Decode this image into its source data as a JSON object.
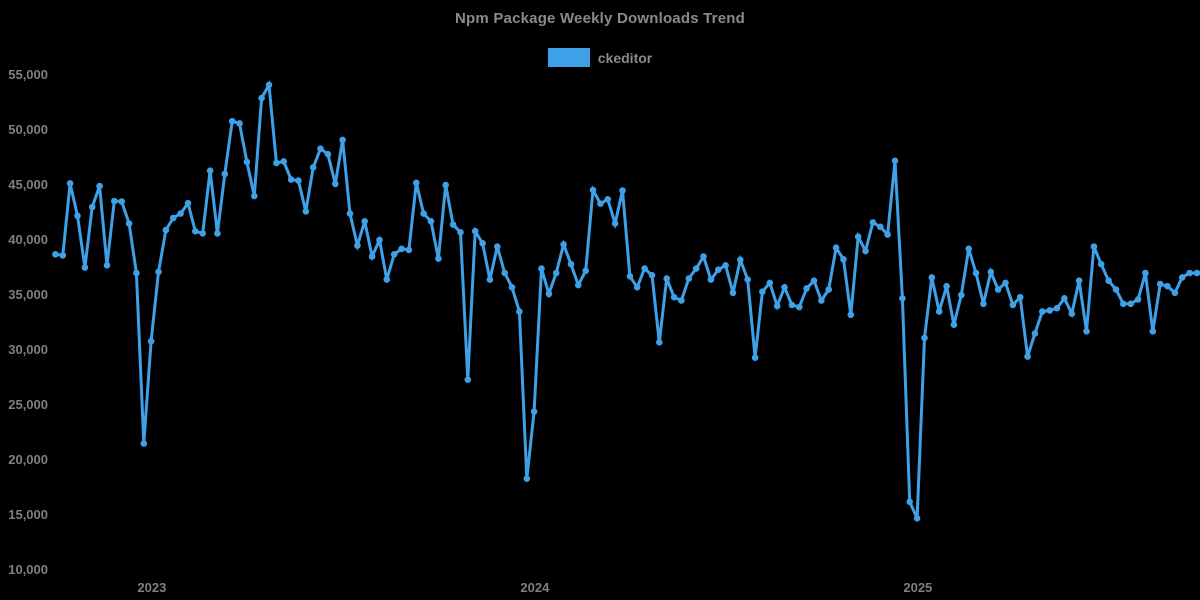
{
  "title": "Npm Package Weekly Downloads Trend",
  "legend": {
    "label": "ckeditor",
    "swatch_color": "#3ea0e6"
  },
  "colors": {
    "background": "#000000",
    "line": "#3ea0e6",
    "text": "#8a8a8a"
  },
  "chart_data": {
    "type": "line",
    "title": "Npm Package Weekly Downloads Trend",
    "xlabel": "",
    "ylabel": "",
    "grid": false,
    "legend_position": "top-center",
    "marker": "circle",
    "ylim": [
      10000,
      55000
    ],
    "y_axis": {
      "tick_values": [
        55000,
        50000,
        45000,
        40000,
        35000,
        30000,
        25000,
        20000,
        15000,
        10000
      ],
      "tick_labels": [
        "55,000",
        "50,000",
        "45,000",
        "40,000",
        "35,000",
        "30,000",
        "25,000",
        "20,000",
        "15,000",
        "10,000"
      ]
    },
    "x_axis": {
      "unit": "week",
      "tick_labels": [
        "2023",
        "2024",
        "2025"
      ],
      "tick_week_indices": [
        13.1,
        65.1,
        117.1
      ]
    },
    "series": [
      {
        "name": "ckeditor",
        "color": "#3ea0e6",
        "values": [
          38700,
          38600,
          45150,
          42200,
          37500,
          43000,
          44900,
          37700,
          43550,
          43500,
          41500,
          37000,
          21500,
          30800,
          37100,
          40900,
          42000,
          42400,
          43350,
          40800,
          40600,
          46300,
          40600,
          46000,
          50800,
          50600,
          47100,
          44000,
          52900,
          54100,
          47000,
          47150,
          45500,
          45400,
          42600,
          46600,
          48300,
          47800,
          45100,
          49100,
          42400,
          39500,
          41700,
          38500,
          40000,
          36400,
          38700,
          39200,
          39100,
          45200,
          42400,
          41700,
          38300,
          45000,
          41400,
          40700,
          27300,
          40800,
          39700,
          36400,
          39400,
          37000,
          35700,
          33500,
          18300,
          24400,
          37400,
          35100,
          37000,
          39600,
          37800,
          35900,
          37200,
          44550,
          43300,
          43700,
          41500,
          44500,
          36700,
          35700,
          37400,
          36800,
          30700,
          36500,
          34800,
          34500,
          36500,
          37400,
          38500,
          36400,
          37300,
          37700,
          35200,
          38200,
          36400,
          29300,
          35300,
          36100,
          34000,
          35700,
          34100,
          33900,
          35600,
          36300,
          34500,
          35500,
          39300,
          38250,
          33200,
          40300,
          39000,
          41600,
          41200,
          40500,
          47200,
          34700,
          16200,
          14700,
          31100,
          36600,
          33500,
          35800,
          32300,
          35000,
          39200,
          37000,
          34200,
          37100,
          35500,
          36100,
          34100,
          34800,
          29400,
          31500,
          33500,
          33600,
          33800,
          34700,
          33300,
          36300,
          31700,
          39400,
          37800,
          36300,
          35500,
          34200,
          34200,
          34600,
          37000,
          31700,
          36000,
          35800,
          35200,
          36600,
          37000,
          37000
        ]
      }
    ]
  }
}
